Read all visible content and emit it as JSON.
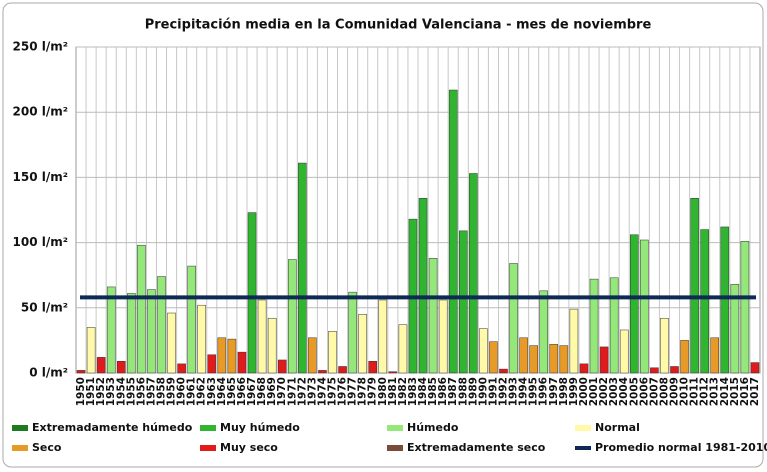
{
  "chart_data": {
    "type": "bar",
    "title": "Precipitación media en la Comunidad Valenciana - mes de noviembre",
    "categories": [
      "1950",
      "1951",
      "1952",
      "1953",
      "1954",
      "1955",
      "1956",
      "1957",
      "1958",
      "1959",
      "1960",
      "1961",
      "1962",
      "1963",
      "1964",
      "1965",
      "1966",
      "1967",
      "1968",
      "1969",
      "1970",
      "1971",
      "1972",
      "1973",
      "1974",
      "1975",
      "1976",
      "1977",
      "1978",
      "1979",
      "1980",
      "1981",
      "1982",
      "1983",
      "1984",
      "1985",
      "1986",
      "1987",
      "1988",
      "1989",
      "1990",
      "1991",
      "1992",
      "1993",
      "1994",
      "1995",
      "1996",
      "1997",
      "1998",
      "1999",
      "2000",
      "2001",
      "2002",
      "2003",
      "2004",
      "2005",
      "2006",
      "2007",
      "2008",
      "2009",
      "2010",
      "2011",
      "2012",
      "2013",
      "2014",
      "2015",
      "2016",
      "2017"
    ],
    "series": [
      {
        "name": "Extremadamente húmedo",
        "color": "#1e7a1e",
        "values": [
          null,
          null,
          null,
          null,
          null,
          null,
          null,
          null,
          null,
          null,
          null,
          null,
          null,
          null,
          null,
          null,
          null,
          null,
          null,
          null,
          null,
          null,
          null,
          null,
          null,
          null,
          null,
          null,
          null,
          null,
          null,
          null,
          null,
          null,
          null,
          null,
          null,
          null,
          null,
          null,
          null,
          null,
          null,
          null,
          null,
          null,
          null,
          null,
          null,
          null,
          null,
          null,
          null,
          null,
          null,
          null,
          null,
          null,
          null,
          null,
          null,
          null,
          null,
          null,
          null,
          null,
          null,
          null
        ]
      },
      {
        "name": "Muy húmedo",
        "color": "#2fb52f",
        "values": [
          null,
          null,
          null,
          null,
          null,
          null,
          null,
          null,
          null,
          null,
          null,
          null,
          null,
          null,
          null,
          null,
          null,
          123,
          null,
          null,
          null,
          null,
          161,
          null,
          null,
          null,
          null,
          null,
          null,
          null,
          null,
          null,
          null,
          118,
          134,
          null,
          null,
          217,
          109,
          153,
          null,
          null,
          null,
          null,
          null,
          null,
          null,
          null,
          null,
          null,
          null,
          null,
          null,
          null,
          null,
          106,
          null,
          null,
          null,
          null,
          null,
          134,
          110,
          null,
          112,
          null,
          null,
          null
        ]
      },
      {
        "name": "Húmedo",
        "color": "#94e87a",
        "values": [
          null,
          null,
          null,
          66,
          null,
          61,
          98,
          64,
          74,
          null,
          null,
          82,
          null,
          null,
          null,
          null,
          null,
          null,
          null,
          null,
          null,
          87,
          null,
          null,
          null,
          null,
          null,
          62,
          null,
          null,
          null,
          null,
          null,
          null,
          null,
          88,
          null,
          null,
          null,
          null,
          null,
          null,
          null,
          84,
          null,
          null,
          63,
          null,
          null,
          null,
          null,
          72,
          null,
          73,
          null,
          null,
          102,
          null,
          null,
          null,
          null,
          null,
          null,
          null,
          null,
          68,
          101,
          null
        ]
      },
      {
        "name": "Normal",
        "color": "#fff9a8",
        "values": [
          null,
          35,
          null,
          null,
          null,
          null,
          null,
          null,
          null,
          46,
          null,
          null,
          52,
          null,
          null,
          null,
          null,
          null,
          56,
          42,
          null,
          null,
          null,
          null,
          null,
          32,
          null,
          null,
          45,
          null,
          56,
          null,
          37,
          null,
          null,
          null,
          56,
          null,
          null,
          null,
          34,
          null,
          null,
          null,
          null,
          null,
          null,
          null,
          null,
          49,
          null,
          null,
          null,
          null,
          33,
          null,
          null,
          null,
          42,
          null,
          null,
          null,
          null,
          null,
          null,
          null,
          null,
          null
        ]
      },
      {
        "name": "Seco",
        "color": "#e89a26",
        "values": [
          null,
          null,
          null,
          null,
          null,
          null,
          null,
          null,
          null,
          null,
          null,
          null,
          null,
          null,
          27,
          26,
          null,
          null,
          null,
          null,
          null,
          null,
          null,
          27,
          null,
          null,
          null,
          null,
          null,
          null,
          null,
          null,
          null,
          null,
          null,
          null,
          null,
          null,
          null,
          null,
          null,
          24,
          null,
          null,
          27,
          21,
          null,
          22,
          21,
          null,
          null,
          null,
          null,
          null,
          null,
          null,
          null,
          null,
          null,
          null,
          25,
          null,
          null,
          27,
          null,
          null,
          null,
          null
        ]
      },
      {
        "name": "Muy seco",
        "color": "#e01b1b",
        "values": [
          2,
          null,
          12,
          null,
          9,
          null,
          null,
          null,
          null,
          null,
          7,
          null,
          null,
          14,
          null,
          null,
          16,
          null,
          null,
          null,
          10,
          null,
          null,
          null,
          2,
          null,
          5,
          null,
          null,
          9,
          null,
          1,
          null,
          null,
          null,
          null,
          null,
          null,
          null,
          null,
          null,
          null,
          3,
          null,
          null,
          null,
          null,
          null,
          null,
          null,
          7,
          null,
          20,
          null,
          null,
          null,
          null,
          4,
          null,
          5,
          null,
          null,
          null,
          null,
          null,
          null,
          null,
          8
        ]
      },
      {
        "name": "Extremadamente seco",
        "color": "#7a4a3a",
        "values": [
          null,
          null,
          null,
          null,
          null,
          null,
          null,
          null,
          null,
          null,
          null,
          null,
          null,
          null,
          null,
          null,
          null,
          null,
          null,
          null,
          null,
          null,
          null,
          null,
          null,
          null,
          null,
          null,
          null,
          null,
          null,
          null,
          null,
          null,
          null,
          null,
          null,
          null,
          null,
          null,
          null,
          null,
          null,
          null,
          null,
          null,
          null,
          null,
          null,
          null,
          null,
          null,
          null,
          null,
          null,
          null,
          null,
          null,
          null,
          null,
          null,
          null,
          null,
          null,
          null,
          null,
          null,
          null
        ]
      }
    ],
    "reference_line": {
      "name": "Promedio normal 1981-2010",
      "value": 58,
      "color": "#0d2a55"
    },
    "ylim": [
      0,
      250
    ],
    "yticks": [
      {
        "value": 0,
        "label": "0 l/m²"
      },
      {
        "value": 50,
        "label": "50 l/m²"
      },
      {
        "value": 100,
        "label": "100 l/m²"
      },
      {
        "value": 150,
        "label": "150 l/m²"
      },
      {
        "value": 200,
        "label": "200 l/m²"
      },
      {
        "value": 250,
        "label": "250 l/m²"
      }
    ],
    "grid": true
  }
}
